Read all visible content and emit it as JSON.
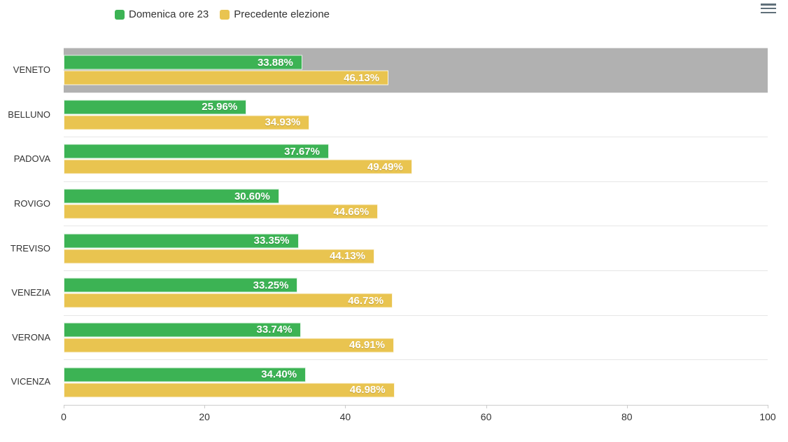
{
  "legend": {
    "items": [
      {
        "label": "Domenica ore 23",
        "color": "#3cb354"
      },
      {
        "label": "Precedente elezione",
        "color": "#e9c450"
      }
    ]
  },
  "menu": {
    "icon": "hamburger-menu-icon"
  },
  "chart_data": {
    "type": "bar",
    "orientation": "horizontal",
    "title": "",
    "categories": [
      "VENETO",
      "BELLUNO",
      "PADOVA",
      "ROVIGO",
      "TREVISO",
      "VENEZIA",
      "VERONA",
      "VICENZA"
    ],
    "series": [
      {
        "name": "Domenica ore 23",
        "color": "#3cb354",
        "values": [
          33.88,
          25.96,
          37.67,
          30.6,
          33.35,
          33.25,
          33.74,
          34.4
        ],
        "labels": [
          "33.88%",
          "25.96%",
          "37.67%",
          "30.60%",
          "33.35%",
          "33.25%",
          "33.74%",
          "34.40%"
        ]
      },
      {
        "name": "Precedente elezione",
        "color": "#e9c450",
        "values": [
          46.13,
          34.93,
          49.49,
          44.66,
          44.13,
          46.73,
          46.91,
          46.98
        ],
        "labels": [
          "46.13%",
          "34.93%",
          "49.49%",
          "44.66%",
          "44.13%",
          "46.73%",
          "46.91%",
          "46.98%"
        ]
      }
    ],
    "xlim": [
      0,
      100
    ],
    "xticks": [
      0,
      20,
      40,
      60,
      80,
      100
    ],
    "grid": "category-separators-only",
    "legend_position": "top",
    "highlighted_category": "VENETO",
    "highlight_color": "#b1b1b1",
    "value_label_color": "#ffffff",
    "axis_label_color": "#333333"
  }
}
